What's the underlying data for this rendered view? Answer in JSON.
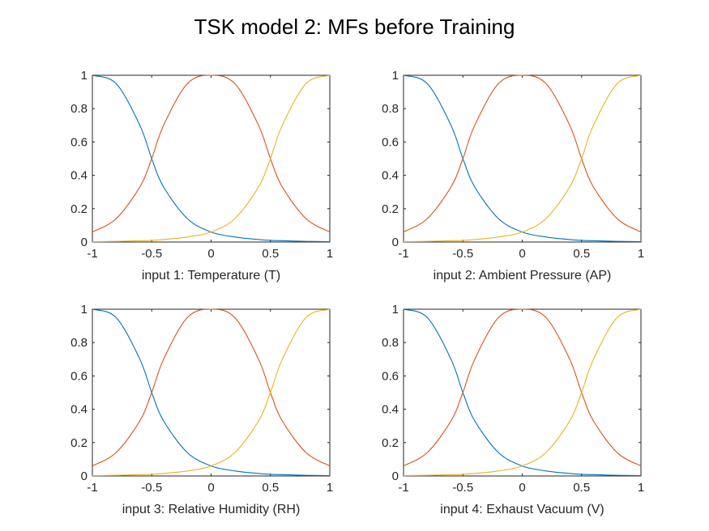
{
  "figure_title": "TSK model 2: MFs before Training",
  "chart_data": [
    {
      "type": "line",
      "xlabel": "input 1: Temperature (T)",
      "ylabel": "",
      "xlim": [
        -1,
        1
      ],
      "ylim": [
        0,
        1
      ],
      "xticks": [
        "-1",
        "-0.5",
        "0",
        "0.5",
        "1"
      ],
      "yticks": [
        "0",
        "0.2",
        "0.4",
        "0.6",
        "0.8",
        "1"
      ],
      "x": [
        -1.0,
        -0.8,
        -0.6,
        -0.5,
        -0.4,
        -0.2,
        0.0,
        0.2,
        0.4,
        0.5,
        0.6,
        0.8,
        1.0
      ],
      "series": [
        {
          "color": "#0072BD",
          "values": [
            1.0,
            0.95,
            0.7,
            0.5,
            0.33,
            0.14,
            0.06,
            0.03,
            0.015,
            0.01,
            0.008,
            0.004,
            0.002
          ]
        },
        {
          "color": "#D95319",
          "values": [
            0.06,
            0.14,
            0.33,
            0.5,
            0.7,
            0.95,
            1.0,
            0.95,
            0.7,
            0.5,
            0.33,
            0.14,
            0.06
          ]
        },
        {
          "color": "#EDB120",
          "values": [
            0.002,
            0.004,
            0.008,
            0.01,
            0.015,
            0.03,
            0.06,
            0.14,
            0.33,
            0.5,
            0.7,
            0.95,
            1.0
          ]
        }
      ]
    },
    {
      "type": "line",
      "xlabel": "input 2: Ambient Pressure (AP)",
      "ylabel": "",
      "xlim": [
        -1,
        1
      ],
      "ylim": [
        0,
        1
      ],
      "xticks": [
        "-1",
        "-0.5",
        "0",
        "0.5",
        "1"
      ],
      "yticks": [
        "0",
        "0.2",
        "0.4",
        "0.6",
        "0.8",
        "1"
      ],
      "x": [
        -1.0,
        -0.8,
        -0.6,
        -0.5,
        -0.4,
        -0.2,
        0.0,
        0.2,
        0.4,
        0.5,
        0.6,
        0.8,
        1.0
      ],
      "series": [
        {
          "color": "#0072BD",
          "values": [
            1.0,
            0.95,
            0.7,
            0.5,
            0.33,
            0.14,
            0.06,
            0.03,
            0.015,
            0.01,
            0.008,
            0.004,
            0.002
          ]
        },
        {
          "color": "#D95319",
          "values": [
            0.06,
            0.14,
            0.33,
            0.5,
            0.7,
            0.95,
            1.0,
            0.95,
            0.7,
            0.5,
            0.33,
            0.14,
            0.06
          ]
        },
        {
          "color": "#EDB120",
          "values": [
            0.002,
            0.004,
            0.008,
            0.01,
            0.015,
            0.03,
            0.06,
            0.14,
            0.33,
            0.5,
            0.7,
            0.95,
            1.0
          ]
        }
      ]
    },
    {
      "type": "line",
      "xlabel": "input 3: Relative Humidity (RH)",
      "ylabel": "",
      "xlim": [
        -1,
        1
      ],
      "ylim": [
        0,
        1
      ],
      "xticks": [
        "-1",
        "-0.5",
        "0",
        "0.5",
        "1"
      ],
      "yticks": [
        "0",
        "0.2",
        "0.4",
        "0.6",
        "0.8",
        "1"
      ],
      "x": [
        -1.0,
        -0.8,
        -0.6,
        -0.5,
        -0.4,
        -0.2,
        0.0,
        0.2,
        0.4,
        0.5,
        0.6,
        0.8,
        1.0
      ],
      "series": [
        {
          "color": "#0072BD",
          "values": [
            1.0,
            0.95,
            0.7,
            0.5,
            0.33,
            0.14,
            0.06,
            0.03,
            0.015,
            0.01,
            0.008,
            0.004,
            0.002
          ]
        },
        {
          "color": "#D95319",
          "values": [
            0.06,
            0.14,
            0.33,
            0.5,
            0.7,
            0.95,
            1.0,
            0.95,
            0.7,
            0.5,
            0.33,
            0.14,
            0.06
          ]
        },
        {
          "color": "#EDB120",
          "values": [
            0.002,
            0.004,
            0.008,
            0.01,
            0.015,
            0.03,
            0.06,
            0.14,
            0.33,
            0.5,
            0.7,
            0.95,
            1.0
          ]
        }
      ]
    },
    {
      "type": "line",
      "xlabel": "input 4: Exhaust Vacuum (V)",
      "ylabel": "",
      "xlim": [
        -1,
        1
      ],
      "ylim": [
        0,
        1
      ],
      "xticks": [
        "-1",
        "-0.5",
        "0",
        "0.5",
        "1"
      ],
      "yticks": [
        "0",
        "0.2",
        "0.4",
        "0.6",
        "0.8",
        "1"
      ],
      "x": [
        -1.0,
        -0.8,
        -0.6,
        -0.5,
        -0.4,
        -0.2,
        0.0,
        0.2,
        0.4,
        0.5,
        0.6,
        0.8,
        1.0
      ],
      "series": [
        {
          "color": "#0072BD",
          "values": [
            1.0,
            0.95,
            0.7,
            0.5,
            0.33,
            0.14,
            0.06,
            0.03,
            0.015,
            0.01,
            0.008,
            0.004,
            0.002
          ]
        },
        {
          "color": "#D95319",
          "values": [
            0.06,
            0.14,
            0.33,
            0.5,
            0.7,
            0.95,
            1.0,
            0.95,
            0.7,
            0.5,
            0.33,
            0.14,
            0.06
          ]
        },
        {
          "color": "#EDB120",
          "values": [
            0.002,
            0.004,
            0.008,
            0.01,
            0.015,
            0.03,
            0.06,
            0.14,
            0.33,
            0.5,
            0.7,
            0.95,
            1.0
          ]
        }
      ]
    }
  ]
}
